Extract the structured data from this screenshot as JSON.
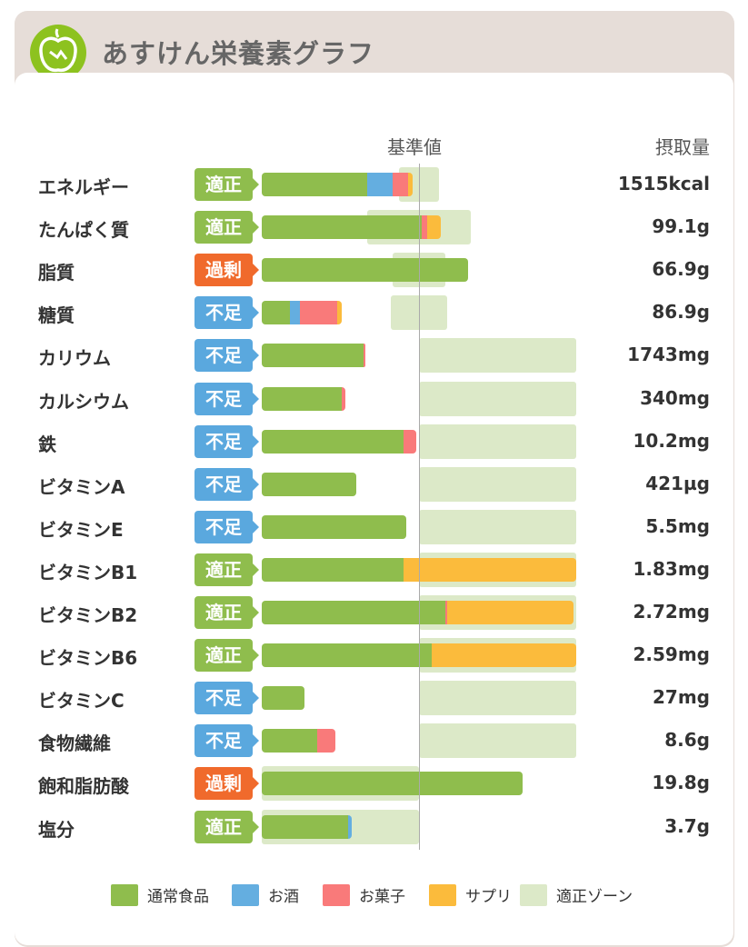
{
  "header": {
    "title": "あすけん栄養素グラフ",
    "logo": "apple-icon"
  },
  "chart_data": {
    "type": "bar",
    "stacked": true,
    "orientation": "horizontal",
    "unit": "% of reference value",
    "xlim": [
      0,
      200
    ],
    "reference_label": "基準値",
    "value_column_label": "摂取量",
    "colors": {
      "normal": "#8fbd4d",
      "alcohol": "#64aee0",
      "snack": "#f97a7a",
      "supplement": "#fbbb3c",
      "zone": "#dce9c8"
    },
    "status_colors": {
      "適正": "#8fbd4d",
      "不足": "#5aa8de",
      "過剰": "#f06a2c"
    },
    "legend": [
      {
        "key": "normal",
        "label": "通常食品"
      },
      {
        "key": "alcohol",
        "label": "お酒"
      },
      {
        "key": "snack",
        "label": "お菓子"
      },
      {
        "key": "supplement",
        "label": "サプリ"
      },
      {
        "key": "zone",
        "label": "適正ゾーン"
      }
    ],
    "rows": [
      {
        "name": "エネルギー",
        "status": "適正",
        "value": "1515kcal",
        "zone": [
          87,
          113
        ],
        "segments": {
          "normal": 67,
          "alcohol": 16,
          "snack": 10,
          "supplement": 3
        }
      },
      {
        "name": "たんぱく質",
        "status": "適正",
        "value": "99.1g",
        "zone": [
          67,
          133
        ],
        "segments": {
          "normal": 102,
          "alcohol": 0,
          "snack": 3,
          "supplement": 9
        }
      },
      {
        "name": "脂質",
        "status": "過剰",
        "value": "66.9g",
        "zone": [
          83,
          117
        ],
        "segments": {
          "normal": 131,
          "alcohol": 0,
          "snack": 0,
          "supplement": 0
        }
      },
      {
        "name": "糖質",
        "status": "不足",
        "value": "86.9g",
        "zone": [
          82,
          118
        ],
        "segments": {
          "normal": 18,
          "alcohol": 6,
          "snack": 24,
          "supplement": 3
        }
      },
      {
        "name": "カリウム",
        "status": "不足",
        "value": "1743mg",
        "zone": [
          100,
          200
        ],
        "segments": {
          "normal": 65,
          "alcohol": 0,
          "snack": 1,
          "supplement": 0
        }
      },
      {
        "name": "カルシウム",
        "status": "不足",
        "value": "340mg",
        "zone": [
          100,
          200
        ],
        "segments": {
          "normal": 51,
          "alcohol": 0,
          "snack": 2,
          "supplement": 0
        }
      },
      {
        "name": "鉄",
        "status": "不足",
        "value": "10.2mg",
        "zone": [
          100,
          200
        ],
        "segments": {
          "normal": 90,
          "alcohol": 0,
          "snack": 8,
          "supplement": 0
        }
      },
      {
        "name": "ビタミンA",
        "status": "不足",
        "value": "421µg",
        "zone": [
          100,
          200
        ],
        "segments": {
          "normal": 60,
          "alcohol": 0,
          "snack": 0,
          "supplement": 0
        }
      },
      {
        "name": "ビタミンE",
        "status": "不足",
        "value": "5.5mg",
        "zone": [
          100,
          200
        ],
        "segments": {
          "normal": 92,
          "alcohol": 0,
          "snack": 0,
          "supplement": 0
        }
      },
      {
        "name": "ビタミンB1",
        "status": "適正",
        "value": "1.83mg",
        "zone": [
          100,
          200
        ],
        "segments": {
          "normal": 90,
          "alcohol": 0,
          "snack": 0,
          "supplement": 110
        }
      },
      {
        "name": "ビタミンB2",
        "status": "適正",
        "value": "2.72mg",
        "zone": [
          100,
          200
        ],
        "segments": {
          "normal": 117,
          "alcohol": 0,
          "snack": 1,
          "supplement": 80
        }
      },
      {
        "name": "ビタミンB6",
        "status": "適正",
        "value": "2.59mg",
        "zone": [
          100,
          200
        ],
        "segments": {
          "normal": 108,
          "alcohol": 0,
          "snack": 0,
          "supplement": 92
        }
      },
      {
        "name": "ビタミンC",
        "status": "不足",
        "value": "27mg",
        "zone": [
          100,
          200
        ],
        "segments": {
          "normal": 27,
          "alcohol": 0,
          "snack": 0,
          "supplement": 0
        }
      },
      {
        "name": "食物繊維",
        "status": "不足",
        "value": "8.6g",
        "zone": [
          100,
          200
        ],
        "segments": {
          "normal": 35,
          "alcohol": 0,
          "snack": 12,
          "supplement": 0
        }
      },
      {
        "name": "飽和脂肪酸",
        "status": "過剰",
        "value": "19.8g",
        "zone": [
          0,
          100
        ],
        "segments": {
          "normal": 166,
          "alcohol": 0,
          "snack": 0,
          "supplement": 0
        }
      },
      {
        "name": "塩分",
        "status": "適正",
        "value": "3.7g",
        "zone": [
          0,
          100
        ],
        "segments": {
          "normal": 55,
          "alcohol": 2,
          "snack": 0,
          "supplement": 0
        }
      }
    ]
  }
}
